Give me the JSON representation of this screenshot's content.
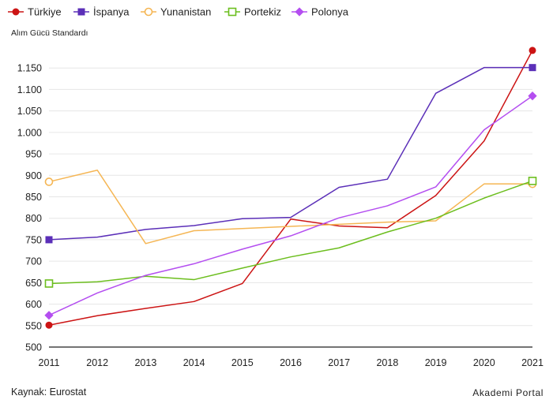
{
  "footer": {
    "source": "Kaynak: Eurostat",
    "brand": "Akademi Portal"
  },
  "chart_data": {
    "type": "line",
    "ylabel": "Alım Gücü Standardı",
    "x": [
      "2011",
      "2012",
      "2013",
      "2014",
      "2015",
      "2016",
      "2017",
      "2018",
      "2019",
      "2020",
      "2021"
    ],
    "ylim": [
      500,
      1200
    ],
    "yticks": [
      500,
      550,
      600,
      650,
      700,
      750,
      800,
      850,
      900,
      950,
      1000,
      1050,
      1100,
      1150
    ],
    "ytick_labels": [
      "500",
      "550",
      "600",
      "650",
      "700",
      "750",
      "800",
      "850",
      "900",
      "950",
      "1.000",
      "1.050",
      "1.100",
      "1.150"
    ],
    "grid": "horizontal",
    "legend": "top-left",
    "series": [
      {
        "name": "Türkiye",
        "color": "#cc1414",
        "marker": "circle-filled",
        "values": [
          551,
          573,
          590,
          606,
          648,
          798,
          782,
          778,
          853,
          980,
          1191
        ]
      },
      {
        "name": "İspanya",
        "color": "#5b2fb8",
        "marker": "square-filled",
        "values": [
          750,
          756,
          774,
          783,
          799,
          802,
          872,
          891,
          1091,
          1151,
          1151
        ]
      },
      {
        "name": "Yunanistan",
        "color": "#f5b654",
        "marker": "circle-open",
        "values": [
          885,
          912,
          741,
          771,
          776,
          781,
          786,
          791,
          794,
          880,
          880
        ]
      },
      {
        "name": "Portekiz",
        "color": "#6cbe1e",
        "marker": "square-open",
        "values": [
          648,
          652,
          665,
          657,
          684,
          710,
          731,
          768,
          800,
          847,
          887
        ]
      },
      {
        "name": "Polonya",
        "color": "#b44ef0",
        "marker": "diamond-filled",
        "values": [
          574,
          626,
          667,
          694,
          728,
          759,
          801,
          829,
          873,
          1006,
          1085
        ]
      }
    ]
  }
}
